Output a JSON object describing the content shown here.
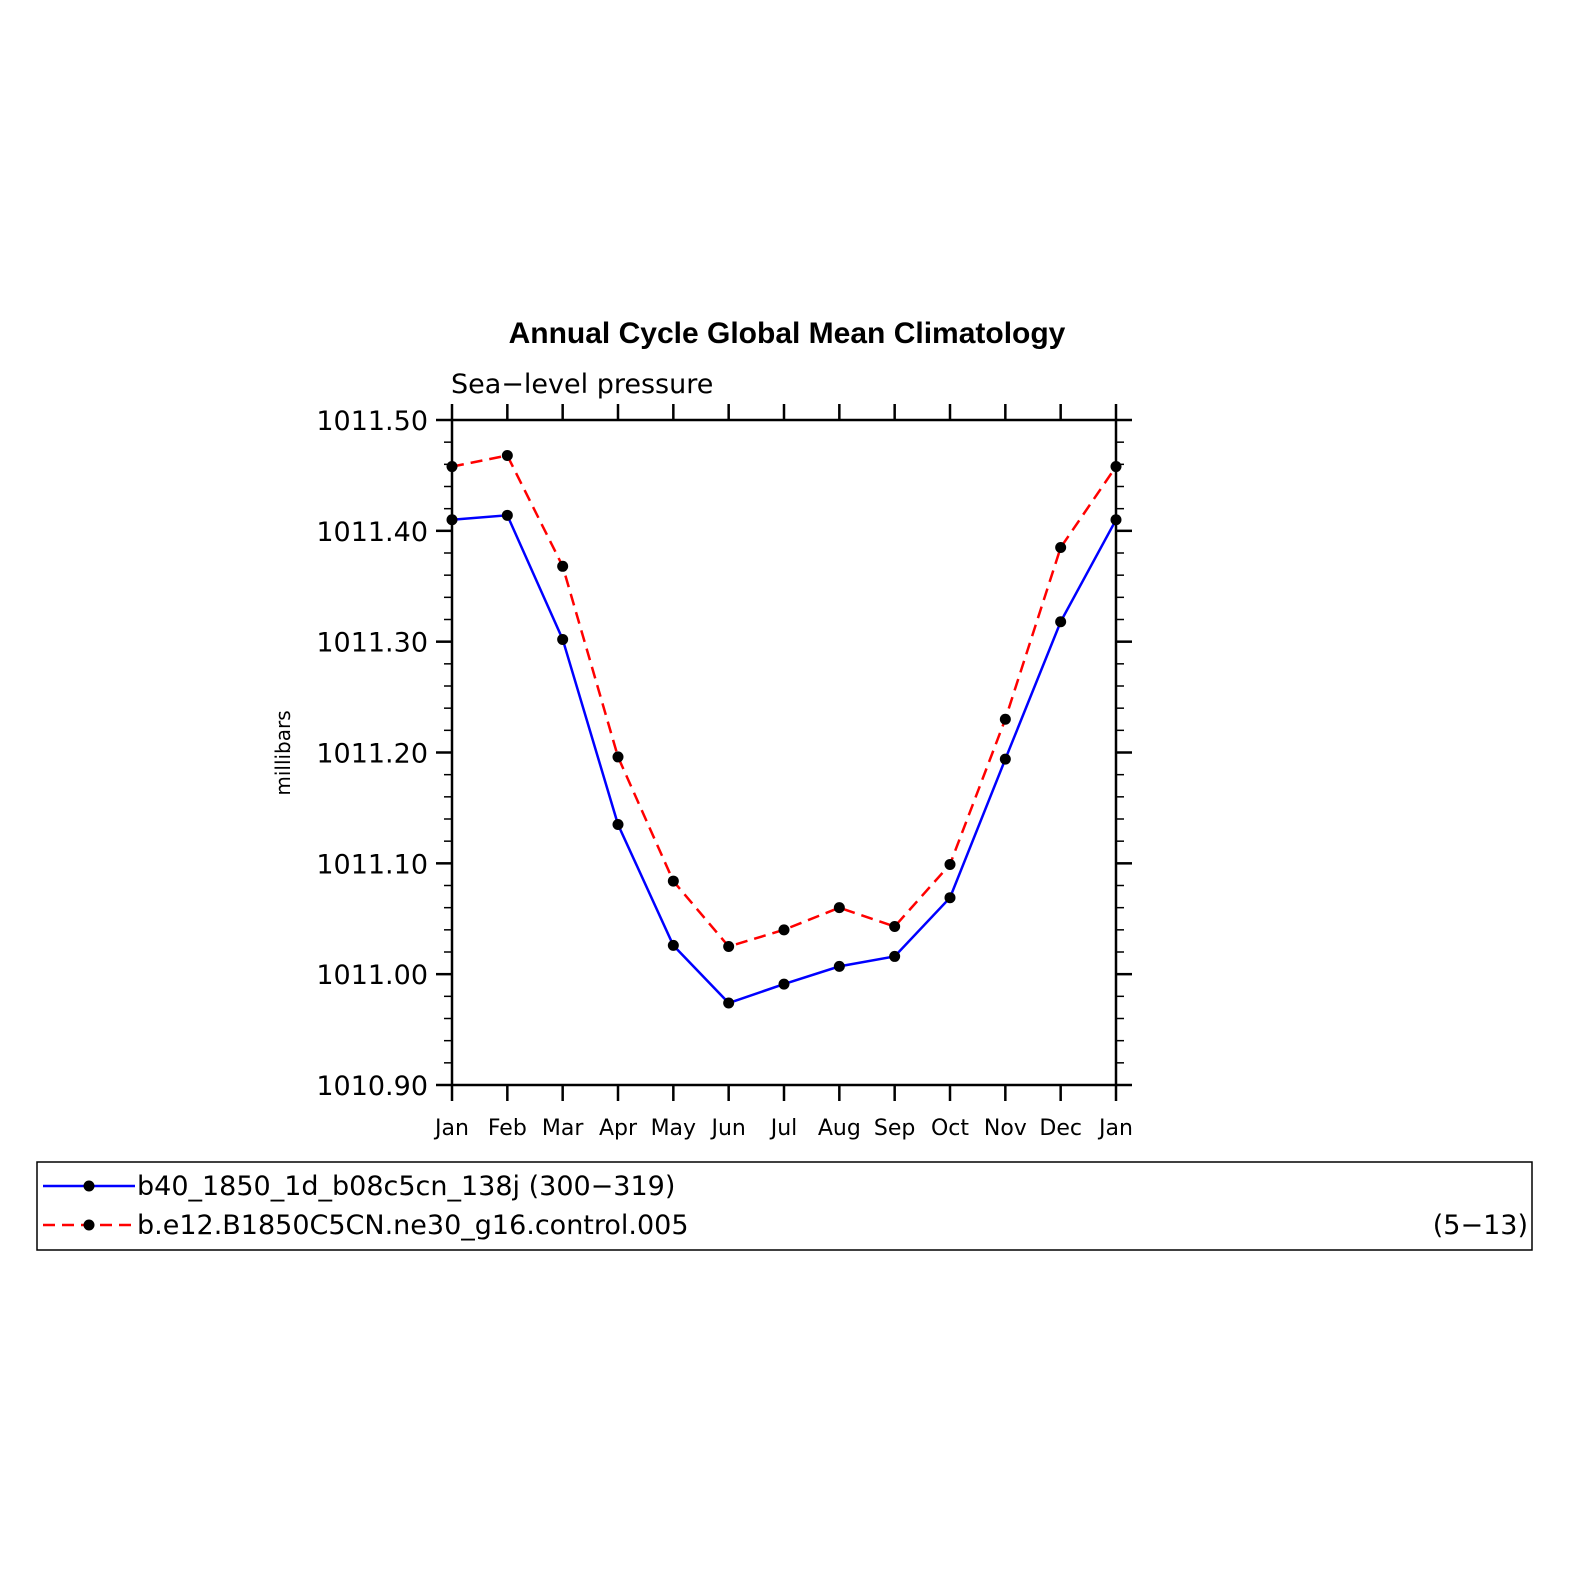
{
  "chart_data": {
    "type": "line",
    "title": "Annual Cycle Global Mean Climatology",
    "subtitle": "Sea−level pressure",
    "ylabel": "millibars",
    "xlabel": "",
    "categories": [
      "Jan",
      "Feb",
      "Mar",
      "Apr",
      "May",
      "Jun",
      "Jul",
      "Aug",
      "Sep",
      "Oct",
      "Nov",
      "Dec",
      "Jan"
    ],
    "ylim": [
      1010.9,
      1011.5
    ],
    "yticks": [
      "1010.90",
      "1011.00",
      "1011.10",
      "1011.20",
      "1011.30",
      "1011.40",
      "1011.50"
    ],
    "series": [
      {
        "name": "b40_1850_1d_b08c5cn_138j (300−319)",
        "color": "#0000ff",
        "dash": "solid",
        "values": [
          1011.41,
          1011.414,
          1011.302,
          1011.135,
          1011.026,
          1010.974,
          1010.991,
          1011.007,
          1011.016,
          1011.069,
          1011.194,
          1011.318,
          1011.41
        ]
      },
      {
        "name": "b.e12.B1850C5CN.ne30_g16.control.005",
        "name_suffix": "(5−13)",
        "color": "#ff0000",
        "dash": "dashed",
        "values": [
          1011.458,
          1011.468,
          1011.368,
          1011.196,
          1011.084,
          1011.025,
          1011.04,
          1011.06,
          1011.043,
          1011.099,
          1011.23,
          1011.385,
          1011.458
        ]
      }
    ],
    "marker_color": "#000000",
    "grid": false,
    "legend_position": "bottom"
  }
}
